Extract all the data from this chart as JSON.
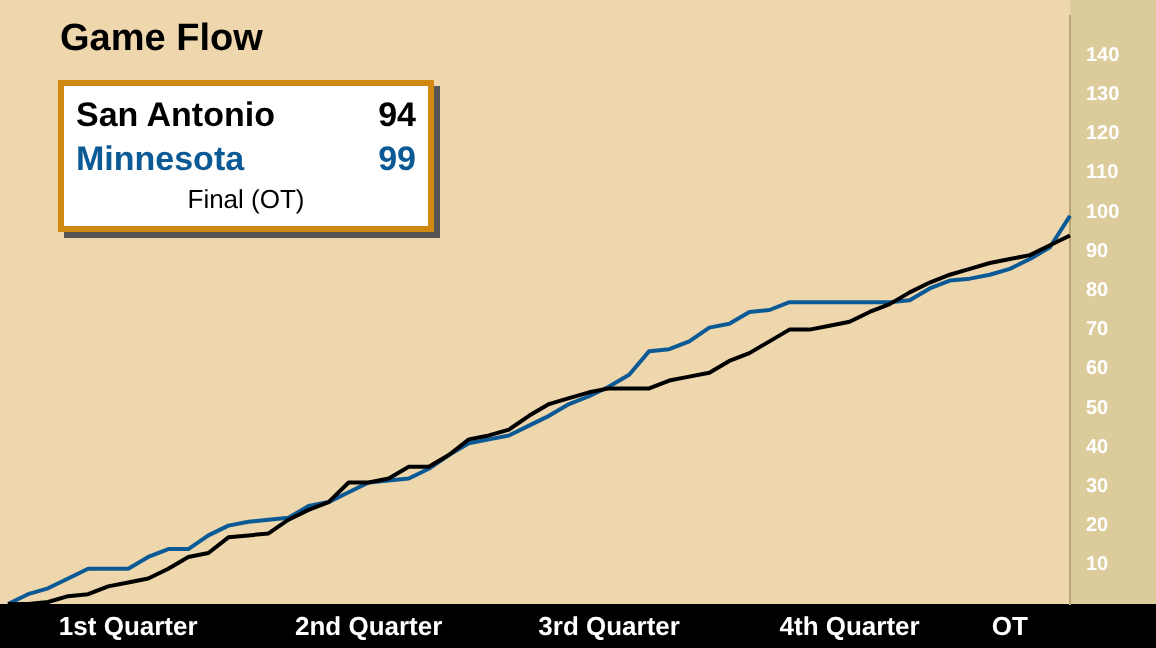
{
  "chart_data": {
    "type": "line",
    "title": "Game Flow",
    "categories": [
      null,
      null,
      null,
      null,
      null,
      null,
      "1st Quarter",
      null,
      null,
      null,
      null,
      null,
      null,
      null,
      null,
      null,
      null,
      null,
      "2nd Quarter",
      null,
      null,
      null,
      null,
      null,
      null,
      null,
      null,
      null,
      null,
      null,
      "3rd Quarter",
      null,
      null,
      null,
      null,
      null,
      null,
      null,
      null,
      null,
      null,
      null,
      "4th Quarter",
      null,
      null,
      null,
      null,
      null,
      null,
      null,
      "OT",
      null,
      null,
      null
    ],
    "series": [
      {
        "name": "San Antonio",
        "color": "#000000",
        "values": [
          0,
          0,
          0.5,
          2,
          2.5,
          4.5,
          5.5,
          6.5,
          9,
          12,
          13,
          17,
          17.5,
          18,
          21.5,
          24,
          26,
          31,
          31,
          32,
          35,
          35,
          38,
          42,
          43,
          44.5,
          48,
          51,
          52.5,
          54,
          55,
          55,
          55,
          57,
          58,
          59,
          62,
          64,
          67,
          70,
          70,
          71,
          72,
          74.5,
          76.5,
          79.5,
          82,
          84,
          85.5,
          87,
          88,
          89,
          91.5,
          94
        ]
      },
      {
        "name": "Minnesota",
        "color": "#0b5a96",
        "values": [
          0,
          2.5,
          4,
          6.5,
          9,
          9,
          9,
          12,
          14,
          14,
          17.5,
          20,
          21,
          21.5,
          22,
          25,
          26,
          28.5,
          31,
          31.5,
          32,
          34.5,
          38,
          41,
          42,
          43,
          45.5,
          48,
          51,
          53,
          55.5,
          58.5,
          64.5,
          65,
          67,
          70.5,
          71.5,
          74.5,
          75,
          77,
          77,
          77,
          77,
          77,
          77,
          77.5,
          80.5,
          82.5,
          83,
          84,
          85.5,
          88,
          91,
          99
        ]
      }
    ],
    "annotations": [
      "94",
      "99",
      "Final (OT)"
    ],
    "ylim": [
      0,
      150
    ],
    "yticks": [
      10,
      20,
      30,
      40,
      50,
      60,
      70,
      80,
      90,
      100,
      110,
      120,
      130,
      140
    ],
    "legend": "top left",
    "marker": "none",
    "line_style": "solid"
  }
}
